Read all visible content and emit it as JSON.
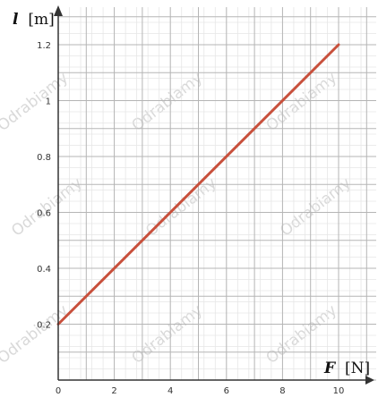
{
  "chart_data": {
    "type": "line",
    "x_axis": {
      "label": "F",
      "unit": "[N]",
      "range": [
        0,
        11
      ],
      "ticks": [
        0,
        2,
        4,
        6,
        8,
        10
      ],
      "tick_labels": [
        "0",
        "2",
        "4",
        "6",
        "8",
        "10"
      ]
    },
    "y_axis": {
      "label": "l",
      "unit": "[m]",
      "range": [
        0,
        1.31
      ],
      "ticks": [
        0.2,
        0.4,
        0.6,
        0.8,
        1,
        1.2
      ],
      "tick_labels": [
        "0.2",
        "0.4",
        "0.6",
        "0.8",
        "1",
        "1.2"
      ]
    },
    "grid": true,
    "minor_grid_step": {
      "x": 0.4,
      "y": 0.04
    },
    "series": [
      {
        "x": [
          0,
          10
        ],
        "y": [
          0.2,
          1.2
        ],
        "color": "#c8503c"
      }
    ],
    "watermark": "Odrabiamy",
    "colors": {
      "grid_major": "#b5b5b5",
      "grid_minor": "#e6e6e6",
      "axis": "#333333"
    }
  }
}
